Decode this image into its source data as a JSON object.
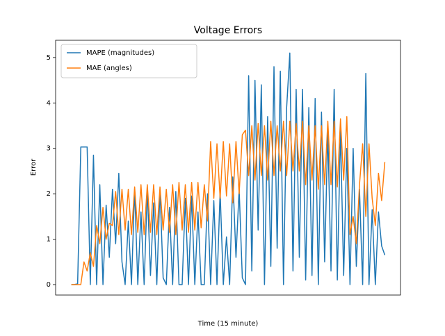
{
  "chart_data": {
    "type": "line",
    "title": "Voltage Errors",
    "xlabel": "Time (15 minute)",
    "ylabel": "Error",
    "x": [
      0,
      1,
      2,
      3,
      4,
      5,
      6,
      7,
      8,
      9,
      10,
      11,
      12,
      13,
      14,
      15,
      16,
      17,
      18,
      19,
      20,
      21,
      22,
      23,
      24,
      25,
      26,
      27,
      28,
      29,
      30,
      31,
      32,
      33,
      34,
      35,
      36,
      37,
      38,
      39,
      40,
      41,
      42,
      43,
      44,
      45,
      46,
      47,
      48,
      49,
      50,
      51,
      52,
      53,
      54,
      55,
      56,
      57,
      58,
      59,
      60,
      61,
      62,
      63,
      64,
      65,
      66,
      67,
      68,
      69,
      70,
      71,
      72,
      73,
      74,
      75,
      76,
      77,
      78,
      79,
      80,
      81,
      82,
      83,
      84,
      85,
      86,
      87,
      88,
      89,
      90,
      91,
      92,
      93,
      94,
      95,
      96,
      97,
      98,
      99
    ],
    "series": [
      {
        "name": "MAPE (magnitudes)",
        "color": "#1f77b4",
        "values": [
          0,
          0,
          0.02,
          3.03,
          3.03,
          3.03,
          0,
          2.85,
          0,
          2.2,
          0,
          1.75,
          0.6,
          2.1,
          0.9,
          2.45,
          0.5,
          0,
          1.4,
          0,
          2.1,
          0,
          1.6,
          0,
          2.1,
          0.2,
          1.8,
          0,
          2.1,
          0.15,
          0,
          1.7,
          0,
          2.05,
          0,
          0,
          1.9,
          0,
          1.95,
          0,
          1.6,
          0,
          0,
          2.0,
          0,
          1.85,
          0,
          2.05,
          0,
          1.05,
          0,
          2.37,
          0.6,
          2.1,
          0.15,
          0,
          4.6,
          0.3,
          4.5,
          1.2,
          4.4,
          0,
          3.7,
          0.4,
          4.8,
          0.8,
          4.7,
          0,
          3.9,
          5.1,
          0.3,
          4.3,
          0.6,
          4.3,
          0.1,
          3.9,
          0.2,
          4.1,
          0,
          3.8,
          0.5,
          3.4,
          0.3,
          4.3,
          0.1,
          3.4,
          0.2,
          3.0,
          0,
          3.0,
          0.4,
          2.1,
          0,
          4.65,
          0,
          1.65,
          0,
          1.6,
          0.85,
          0.65
        ]
      },
      {
        "name": "MAE (angles)",
        "color": "#ff7f0e",
        "values": [
          0,
          0,
          0,
          0,
          0.5,
          0.3,
          0.7,
          0.4,
          1.3,
          0.9,
          1.7,
          1.0,
          1.35,
          1.3,
          2.05,
          1.1,
          2.1,
          1.2,
          2.1,
          1.1,
          2.15,
          1.15,
          2.2,
          1.1,
          2.2,
          1.15,
          2.2,
          1.1,
          2.15,
          1.2,
          2.1,
          1.15,
          2.2,
          1.1,
          2.25,
          1.2,
          2.2,
          1.15,
          2.25,
          1.2,
          2.25,
          1.25,
          2.2,
          1.4,
          3.15,
          1.9,
          3.1,
          1.9,
          3.15,
          1.95,
          3.1,
          1.8,
          3.15,
          2.0,
          3.3,
          3.4,
          2.4,
          3.5,
          2.3,
          3.55,
          2.4,
          3.5,
          2.3,
          3.6,
          2.4,
          3.5,
          2.5,
          3.6,
          2.4,
          3.6,
          2.5,
          3.55,
          2.5,
          3.6,
          2.2,
          3.5,
          2.3,
          3.5,
          2.1,
          3.5,
          2.2,
          3.6,
          2.2,
          3.6,
          2.15,
          3.65,
          2.3,
          3.7,
          1.1,
          1.5,
          0.9,
          2.2,
          3.1,
          1.5,
          3.1,
          1.9,
          1.3,
          2.45,
          1.85,
          2.7
        ]
      }
    ],
    "xlim": [
      -4.95,
      103.95
    ],
    "ylim": [
      -0.23,
      5.38
    ],
    "yticks": [
      0,
      1,
      2,
      3,
      4,
      5
    ],
    "legend": "upper left"
  }
}
